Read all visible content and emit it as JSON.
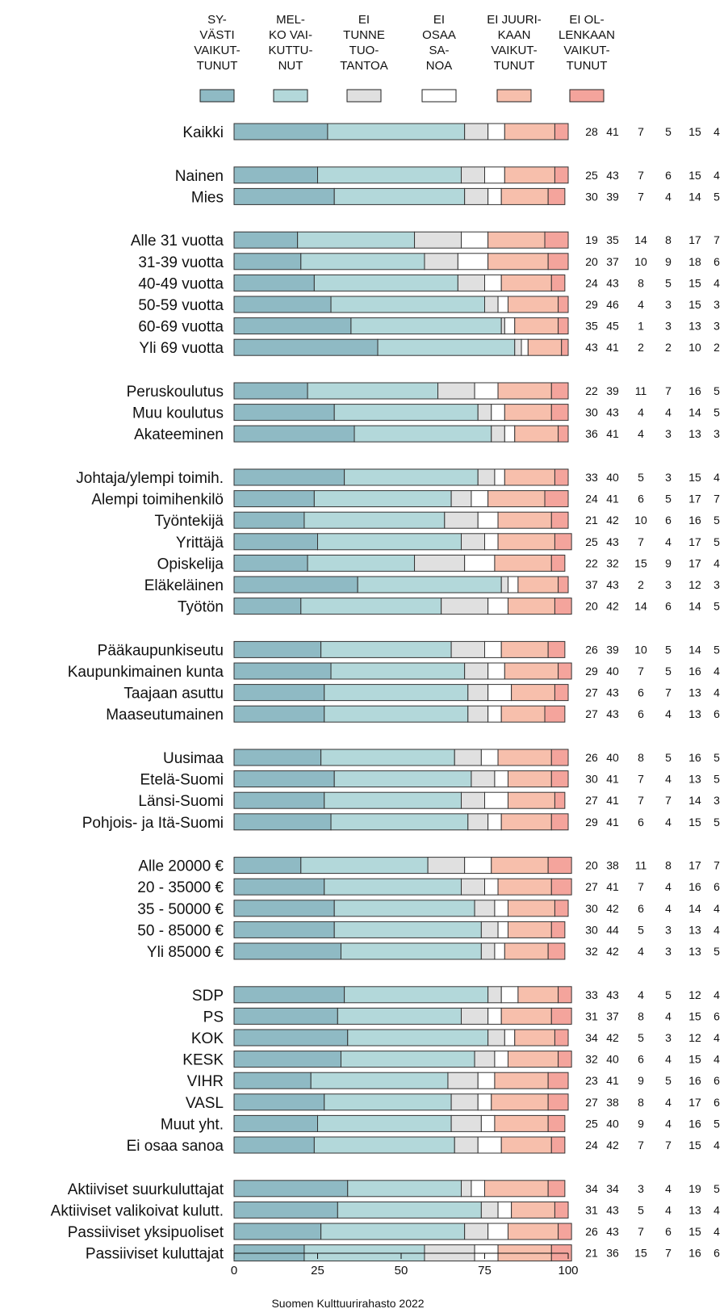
{
  "chart_data": {
    "type": "bar",
    "orientation": "horizontal",
    "stacked": true,
    "xlim": [
      0,
      100
    ],
    "xticks": [
      "0",
      "25",
      "50",
      "75",
      "100"
    ],
    "legend_position": "top",
    "source": "Suomen Kulttuurirahasto 2022",
    "series": [
      {
        "name": [
          "SY-",
          "VÄSTI",
          "VAIKUT-",
          "TUNUT"
        ],
        "color": "#8fbac4"
      },
      {
        "name": [
          "MEL-",
          "KO VAI-",
          "KUTTU-",
          "NUT"
        ],
        "color": "#b3d8da"
      },
      {
        "name": [
          "EI",
          "TUNNE",
          "TUO-",
          "TANTOA"
        ],
        "color": "#e0e0e0"
      },
      {
        "name": [
          "EI",
          "OSAA",
          "SA-",
          "NOA"
        ],
        "color": "#ffffff"
      },
      {
        "name": [
          "EI JUURI-",
          "KAAN",
          "VAIKUT-",
          "TUNUT"
        ],
        "color": "#f7bfac"
      },
      {
        "name": [
          "EI OL-",
          "LENKAAN",
          "VAIKUT-",
          "TUNUT"
        ],
        "color": "#f4a49c"
      }
    ],
    "groups": [
      {
        "rows": [
          {
            "label": "Kaikki",
            "values": [
              28,
              41,
              7,
              5,
              15,
              4
            ]
          }
        ]
      },
      {
        "rows": [
          {
            "label": "Nainen",
            "values": [
              25,
              43,
              7,
              6,
              15,
              4
            ]
          },
          {
            "label": "Mies",
            "values": [
              30,
              39,
              7,
              4,
              14,
              5
            ]
          }
        ]
      },
      {
        "rows": [
          {
            "label": "Alle 31 vuotta",
            "values": [
              19,
              35,
              14,
              8,
              17,
              7
            ]
          },
          {
            "label": "31-39 vuotta",
            "values": [
              20,
              37,
              10,
              9,
              18,
              6
            ]
          },
          {
            "label": "40-49 vuotta",
            "values": [
              24,
              43,
              8,
              5,
              15,
              4
            ]
          },
          {
            "label": "50-59 vuotta",
            "values": [
              29,
              46,
              4,
              3,
              15,
              3
            ]
          },
          {
            "label": "60-69 vuotta",
            "values": [
              35,
              45,
              1,
              3,
              13,
              3
            ]
          },
          {
            "label": "Yli 69 vuotta",
            "values": [
              43,
              41,
              2,
              2,
              10,
              2
            ]
          }
        ]
      },
      {
        "rows": [
          {
            "label": "Peruskoulutus",
            "values": [
              22,
              39,
              11,
              7,
              16,
              5
            ]
          },
          {
            "label": "Muu koulutus",
            "values": [
              30,
              43,
              4,
              4,
              14,
              5
            ]
          },
          {
            "label": "Akateeminen",
            "values": [
              36,
              41,
              4,
              3,
              13,
              3
            ]
          }
        ]
      },
      {
        "rows": [
          {
            "label": "Johtaja/ylempi toimih.",
            "values": [
              33,
              40,
              5,
              3,
              15,
              4
            ]
          },
          {
            "label": "Alempi toimihenkilö",
            "values": [
              24,
              41,
              6,
              5,
              17,
              7
            ]
          },
          {
            "label": "Työntekijä",
            "values": [
              21,
              42,
              10,
              6,
              16,
              5
            ]
          },
          {
            "label": "Yrittäjä",
            "values": [
              25,
              43,
              7,
              4,
              17,
              5
            ]
          },
          {
            "label": "Opiskelija",
            "values": [
              22,
              32,
              15,
              9,
              17,
              4
            ]
          },
          {
            "label": "Eläkeläinen",
            "values": [
              37,
              43,
              2,
              3,
              12,
              3
            ]
          },
          {
            "label": "Työtön",
            "values": [
              20,
              42,
              14,
              6,
              14,
              5
            ]
          }
        ]
      },
      {
        "rows": [
          {
            "label": "Pääkaupunkiseutu",
            "values": [
              26,
              39,
              10,
              5,
              14,
              5
            ]
          },
          {
            "label": "Kaupunkimainen kunta",
            "values": [
              29,
              40,
              7,
              5,
              16,
              4
            ]
          },
          {
            "label": "Taajaan asuttu",
            "values": [
              27,
              43,
              6,
              7,
              13,
              4
            ]
          },
          {
            "label": "Maaseutumainen",
            "values": [
              27,
              43,
              6,
              4,
              13,
              6
            ]
          }
        ]
      },
      {
        "rows": [
          {
            "label": "Uusimaa",
            "values": [
              26,
              40,
              8,
              5,
              16,
              5
            ]
          },
          {
            "label": "Etelä-Suomi",
            "values": [
              30,
              41,
              7,
              4,
              13,
              5
            ]
          },
          {
            "label": "Länsi-Suomi",
            "values": [
              27,
              41,
              7,
              7,
              14,
              3
            ]
          },
          {
            "label": "Pohjois- ja Itä-Suomi",
            "values": [
              29,
              41,
              6,
              4,
              15,
              5
            ]
          }
        ]
      },
      {
        "rows": [
          {
            "label": "Alle 20000 €",
            "values": [
              20,
              38,
              11,
              8,
              17,
              7
            ]
          },
          {
            "label": "20 - 35000 €",
            "values": [
              27,
              41,
              7,
              4,
              16,
              6
            ]
          },
          {
            "label": "35 - 50000 €",
            "values": [
              30,
              42,
              6,
              4,
              14,
              4
            ]
          },
          {
            "label": "50 - 85000 €",
            "values": [
              30,
              44,
              5,
              3,
              13,
              4
            ]
          },
          {
            "label": "Yli 85000 €",
            "values": [
              32,
              42,
              4,
              3,
              13,
              5
            ]
          }
        ]
      },
      {
        "rows": [
          {
            "label": "SDP",
            "values": [
              33,
              43,
              4,
              5,
              12,
              4
            ]
          },
          {
            "label": "PS",
            "values": [
              31,
              37,
              8,
              4,
              15,
              6
            ]
          },
          {
            "label": "KOK",
            "values": [
              34,
              42,
              5,
              3,
              12,
              4
            ]
          },
          {
            "label": "KESK",
            "values": [
              32,
              40,
              6,
              4,
              15,
              4
            ]
          },
          {
            "label": "VIHR",
            "values": [
              23,
              41,
              9,
              5,
              16,
              6
            ]
          },
          {
            "label": "VASL",
            "values": [
              27,
              38,
              8,
              4,
              17,
              6
            ]
          },
          {
            "label": "Muut yht.",
            "values": [
              25,
              40,
              9,
              4,
              16,
              5
            ]
          },
          {
            "label": "Ei osaa sanoa",
            "values": [
              24,
              42,
              7,
              7,
              15,
              4
            ]
          }
        ]
      },
      {
        "rows": [
          {
            "label": "Aktiiviset suurkuluttajat",
            "values": [
              34,
              34,
              3,
              4,
              19,
              5
            ]
          },
          {
            "label": "Aktiiviset valikoivat kulutt.",
            "values": [
              31,
              43,
              5,
              4,
              13,
              4
            ]
          },
          {
            "label": "Passiiviset yksipuoliset",
            "values": [
              26,
              43,
              7,
              6,
              15,
              4
            ]
          },
          {
            "label": "Passiiviset kuluttajat",
            "values": [
              21,
              36,
              15,
              7,
              16,
              6
            ]
          }
        ]
      }
    ]
  }
}
